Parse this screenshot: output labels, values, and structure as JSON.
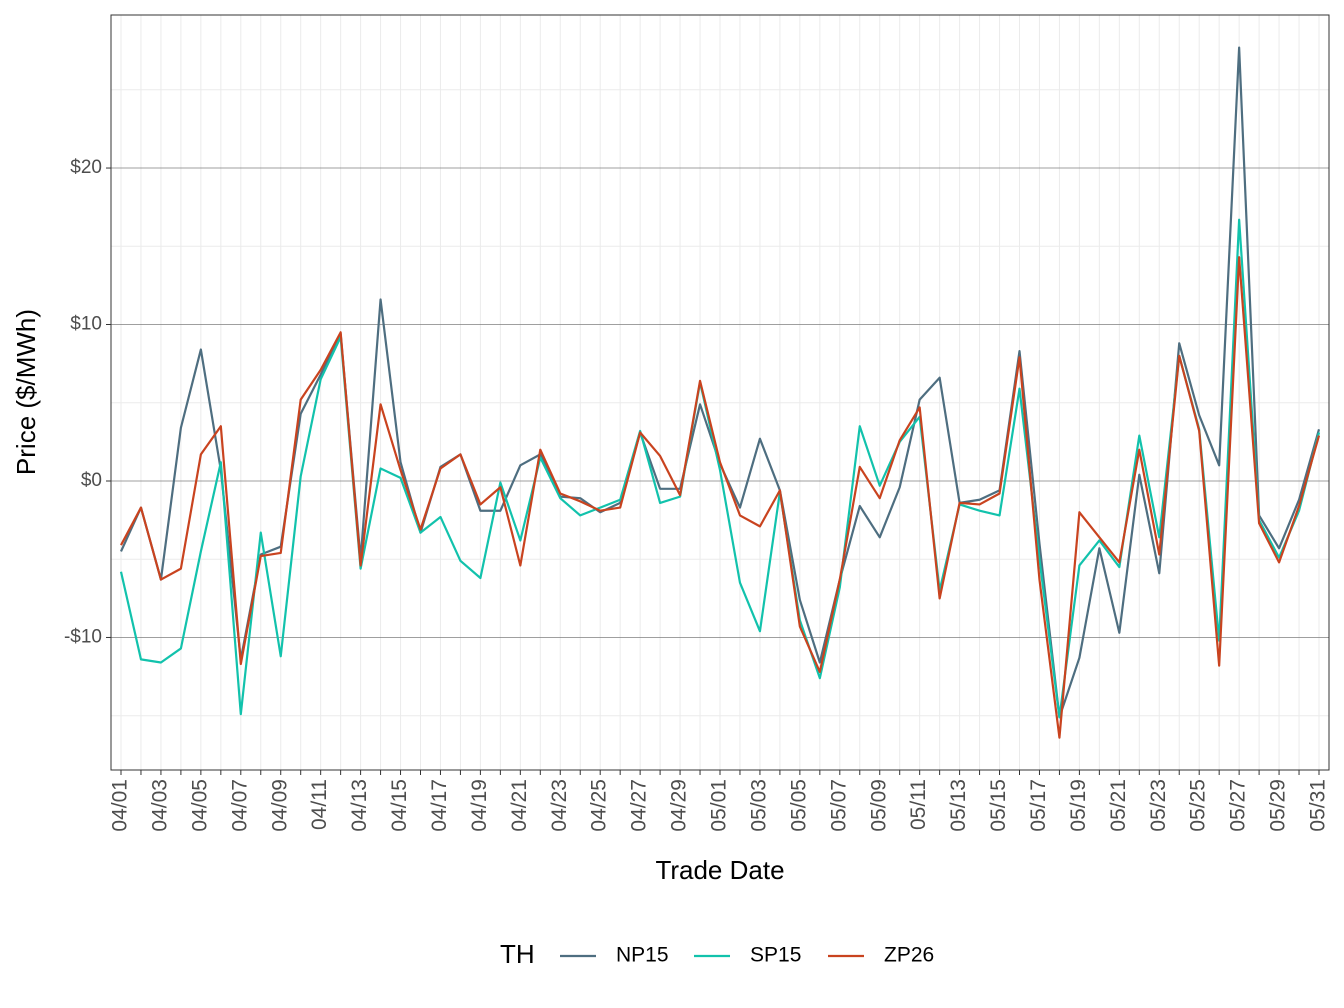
{
  "chart_data": {
    "type": "line",
    "x_label": "Trade Date",
    "y_label": "Price ($/MWh)",
    "legend_title": "TH",
    "legend_position": "bottom",
    "grid": true,
    "categories": [
      "04/01",
      null,
      "04/03",
      null,
      "04/05",
      null,
      "04/07",
      null,
      "04/09",
      null,
      "04/11",
      null,
      "04/13",
      null,
      "04/15",
      null,
      "04/17",
      null,
      "04/19",
      null,
      "04/21",
      null,
      "04/23",
      null,
      "04/25",
      null,
      "04/27",
      null,
      "04/29",
      null,
      "05/01",
      null,
      "05/03",
      null,
      "05/05",
      null,
      "05/07",
      null,
      "05/09",
      null,
      "05/11",
      null,
      "05/13",
      null,
      "05/15",
      null,
      "05/17",
      null,
      "05/19",
      null,
      "05/21",
      null,
      "05/23",
      null,
      "05/25",
      null,
      "05/27",
      null,
      "05/29",
      null,
      "05/31"
    ],
    "ylim": [
      -18.47,
      29.78
    ],
    "yticks": [
      {
        "value": -10,
        "label": "-$10"
      },
      {
        "value": 0,
        "label": "$0"
      },
      {
        "value": 10,
        "label": "$10"
      },
      {
        "value": 20,
        "label": "$20"
      }
    ],
    "series": [
      {
        "name": "NP15",
        "color": "#4e6e80",
        "values": [
          -4.5,
          -1.7,
          -6.3,
          3.4,
          8.4,
          0.7,
          -11.4,
          -4.7,
          -4.2,
          4.3,
          6.8,
          9.4,
          -5.0,
          11.6,
          1.2,
          -3.3,
          0.9,
          1.7,
          -1.9,
          -1.9,
          1.0,
          1.7,
          -1.0,
          -1.1,
          -2.0,
          -1.4,
          3.1,
          -0.5,
          -0.5,
          4.9,
          1.1,
          -1.7,
          2.7,
          -0.6,
          -7.6,
          -11.6,
          -6.3,
          -1.6,
          -3.6,
          -0.4,
          5.2,
          6.6,
          -1.4,
          -1.2,
          -0.6,
          8.3,
          -4.0,
          -15.1,
          -11.3,
          -4.3,
          -9.7,
          0.4,
          -5.9,
          8.8,
          4.2,
          1.0,
          27.7,
          -2.2,
          -4.3,
          -1.2,
          3.3
        ]
      },
      {
        "name": "SP15",
        "color": "#12c2ac",
        "values": [
          -5.8,
          -11.4,
          -11.6,
          -10.7,
          -4.5,
          1.2,
          -14.9,
          -3.3,
          -11.2,
          0.3,
          6.5,
          9.2,
          -5.6,
          0.8,
          0.2,
          -3.3,
          -2.3,
          -5.1,
          -6.2,
          -0.1,
          -3.8,
          1.5,
          -1.1,
          -2.2,
          -1.7,
          -1.2,
          3.2,
          -1.4,
          -1.0,
          6.3,
          0.7,
          -6.5,
          -9.6,
          -0.7,
          -8.9,
          -12.6,
          -6.8,
          3.5,
          -0.3,
          2.5,
          4.1,
          -7.0,
          -1.5,
          -1.9,
          -2.2,
          5.9,
          -5.0,
          -15.1,
          -5.4,
          -3.8,
          -5.5,
          2.9,
          -3.6,
          8.0,
          3.3,
          -10.2,
          16.7,
          -2.5,
          -4.9,
          -1.9,
          3.1
        ]
      },
      {
        "name": "ZP26",
        "color": "#c9431f",
        "values": [
          -4.1,
          -1.7,
          -6.3,
          -5.6,
          1.7,
          3.5,
          -11.7,
          -4.8,
          -4.6,
          5.2,
          7.1,
          9.5,
          -5.4,
          4.9,
          0.7,
          -3.1,
          0.8,
          1.7,
          -1.5,
          -0.4,
          -5.4,
          2.0,
          -0.8,
          -1.3,
          -1.9,
          -1.7,
          3.1,
          1.6,
          -0.9,
          6.4,
          1.2,
          -2.2,
          -2.9,
          -0.6,
          -9.3,
          -12.2,
          -6.3,
          0.9,
          -1.1,
          2.6,
          4.7,
          -7.5,
          -1.4,
          -1.5,
          -0.8,
          7.9,
          -6.3,
          -16.4,
          -2.0,
          -3.6,
          -5.2,
          2.0,
          -4.7,
          8.0,
          3.2,
          -11.8,
          14.3,
          -2.7,
          -5.2,
          -1.6,
          2.9
        ]
      }
    ]
  }
}
